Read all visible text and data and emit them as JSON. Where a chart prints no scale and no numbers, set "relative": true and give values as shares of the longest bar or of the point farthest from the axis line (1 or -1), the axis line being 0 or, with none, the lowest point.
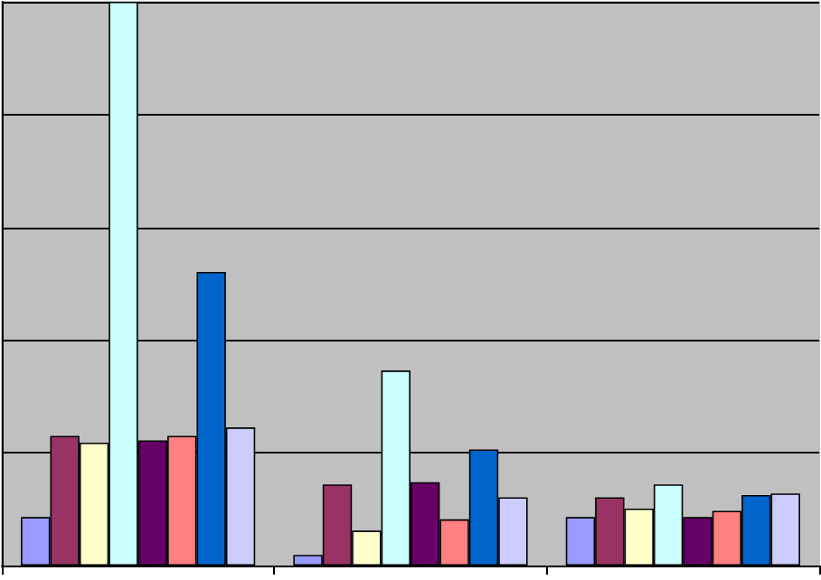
{
  "chart_data": {
    "type": "bar",
    "relative": true,
    "grid": "y",
    "categories": [
      null,
      null,
      null
    ],
    "series": [
      {
        "color": "#9999ff",
        "values": [
          0.086,
          0.019,
          0.086
        ]
      },
      {
        "color": "#993366",
        "values": [
          0.23,
          0.144,
          0.121
        ]
      },
      {
        "color": "#ffffcc",
        "values": [
          0.218,
          0.062,
          0.101
        ]
      },
      {
        "color": "#ccffff",
        "values": [
          1,
          0.346,
          0.144
        ]
      },
      {
        "color": "#660066",
        "values": [
          0.222,
          0.148,
          0.086
        ]
      },
      {
        "color": "#ff8080",
        "values": [
          0.23,
          0.082,
          0.097
        ]
      },
      {
        "color": "#0066cc",
        "values": [
          0.521,
          0.206,
          0.125
        ]
      },
      {
        "color": "#ccccff",
        "values": [
          0.245,
          0.121,
          0.128
        ]
      }
    ]
  }
}
